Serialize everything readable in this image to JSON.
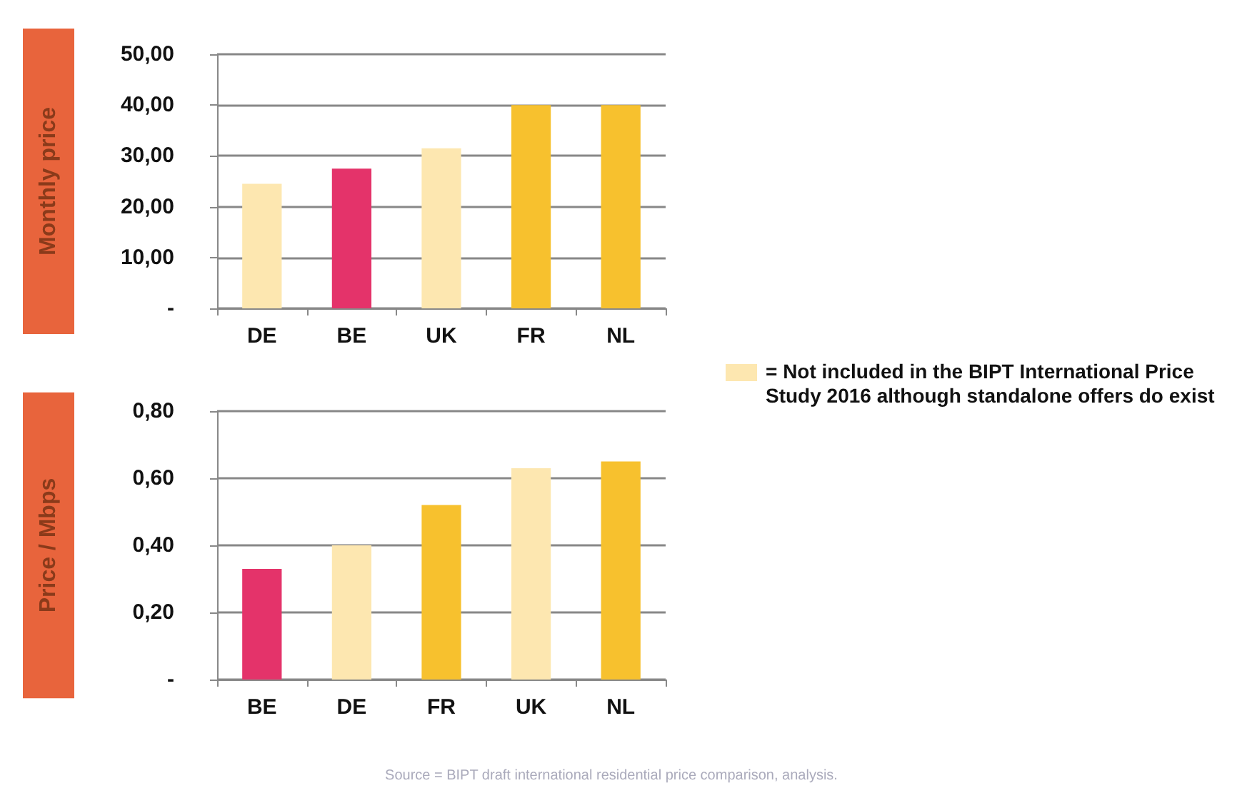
{
  "chart_data": [
    {
      "type": "bar",
      "ylabel": "Monthly price",
      "categories": [
        "DE",
        "BE",
        "UK",
        "FR",
        "NL"
      ],
      "values": [
        24.5,
        27.5,
        31.5,
        40,
        40
      ],
      "colors": [
        "#fde7b0",
        "#e4336a",
        "#fde7b0",
        "#f7c12e",
        "#f7c12e"
      ],
      "ylim": [
        0,
        50
      ],
      "yticks": [
        {
          "value": 0,
          "label": "-"
        },
        {
          "value": 10,
          "label": "10,00"
        },
        {
          "value": 20,
          "label": "20,00"
        },
        {
          "value": 30,
          "label": "30,00"
        },
        {
          "value": 40,
          "label": "40,00"
        },
        {
          "value": 50,
          "label": "50,00"
        }
      ],
      "grid": "y",
      "annotations": [
        "= Not included in the BIPT International Price Study 2016 although standalone offers do exist"
      ]
    },
    {
      "type": "bar",
      "ylabel": "Price / Mbps",
      "categories": [
        "BE",
        "DE",
        "FR",
        "UK",
        "NL"
      ],
      "values": [
        0.33,
        0.4,
        0.52,
        0.63,
        0.65
      ],
      "colors": [
        "#e4336a",
        "#fde7b0",
        "#f7c12e",
        "#fde7b0",
        "#f7c12e"
      ],
      "ylim": [
        0,
        0.8
      ],
      "yticks": [
        {
          "value": 0,
          "label": "-"
        },
        {
          "value": 0.2,
          "label": "0,20"
        },
        {
          "value": 0.4,
          "label": "0,40"
        },
        {
          "value": 0.6,
          "label": "0,60"
        },
        {
          "value": 0.8,
          "label": "0,80"
        }
      ],
      "grid": "y",
      "annotations": [
        "Source = BIPT draft international residential price comparison, analysis."
      ]
    }
  ]
}
